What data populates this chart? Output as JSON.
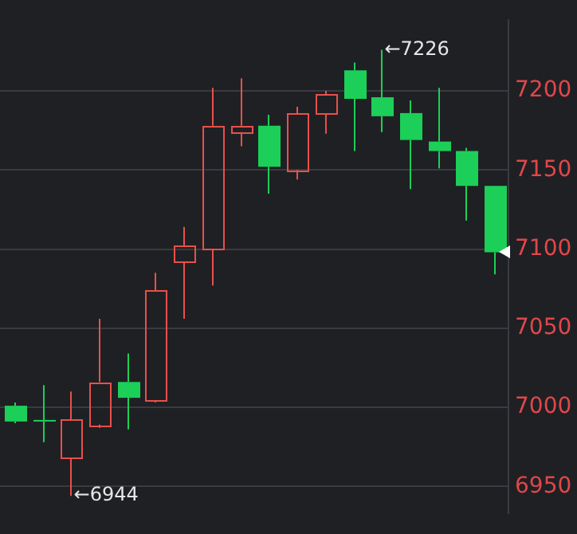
{
  "chart_data": {
    "type": "candlestick",
    "categories": [
      null,
      null,
      null,
      null,
      null,
      null,
      null,
      null,
      null,
      null,
      null,
      null,
      null,
      null,
      null,
      null,
      null,
      null
    ],
    "ohlc": [
      [
        7001,
        7003,
        6990,
        6991
      ],
      [
        6992,
        7014,
        6978,
        6991
      ],
      [
        6968,
        7010,
        6944,
        6992
      ],
      [
        6989,
        7056,
        6987,
        7016
      ],
      [
        7016,
        7034,
        6986,
        7006
      ],
      [
        7004,
        7085,
        7003,
        7074
      ],
      [
        7092,
        7114,
        7056,
        7102
      ],
      [
        7100,
        7202,
        7077,
        7178
      ],
      [
        7174,
        7208,
        7165,
        7178
      ],
      [
        7178,
        7185,
        7135,
        7152
      ],
      [
        7150,
        7190,
        7144,
        7186
      ],
      [
        7186,
        7200,
        7173,
        7198
      ],
      [
        7213,
        7218,
        7162,
        7195
      ],
      [
        7196,
        7226,
        7174,
        7184
      ],
      [
        7186,
        7194,
        7138,
        7169
      ],
      [
        7168,
        7202,
        7151,
        7162
      ],
      [
        7162,
        7164,
        7118,
        7140
      ],
      [
        7140,
        7140,
        7084,
        7098
      ]
    ],
    "colors": [
      "#1ccf58",
      "#1ccf58",
      "#e8504a",
      "#e8504a",
      "#1ccf58",
      "#e8504a",
      "#e8504a",
      "#e8504a",
      "#e8504a",
      "#1ccf58",
      "#e8504a",
      "#e8504a",
      "#1ccf58",
      "#1ccf58",
      "#1ccf58",
      "#1ccf58",
      "#1ccf58",
      "#1ccf58"
    ],
    "ylim": [
      6933,
      7245
    ],
    "yticks": [
      6950,
      7000,
      7050,
      7100,
      7150,
      7200
    ],
    "grid": "y",
    "tick_labels": "y",
    "annotations": [
      "←7226",
      "←6944"
    ]
  }
}
